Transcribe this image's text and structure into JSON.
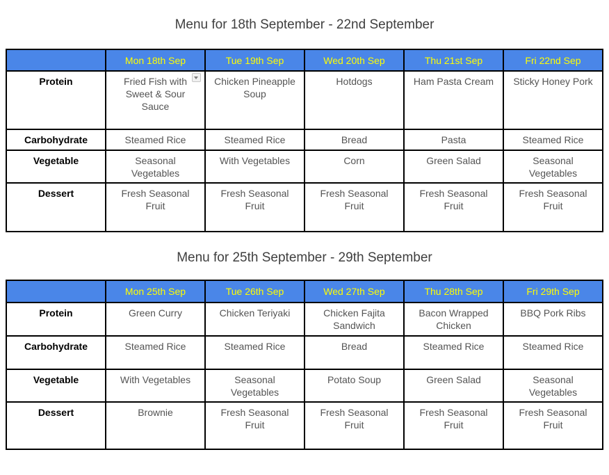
{
  "colors": {
    "header_background": "#4a86e8",
    "header_text": "#ffff00",
    "table_border": "#000000",
    "cell_text": "#545454",
    "row_label_text": "#000000",
    "title_text": "#3f3f3f",
    "page_background": "#ffffff"
  },
  "icons": {
    "dropdown": "dropdown-arrow-icon"
  },
  "tables": [
    {
      "title": "Menu for 18th September - 22nd September",
      "columns": [
        "",
        "Mon 18th Sep",
        "Tue 19th Sep",
        "Wed 20th Sep",
        "Thu 21st Sep",
        "Fri 22nd Sep"
      ],
      "rows": [
        {
          "label": "Protein",
          "cells": [
            "Fried Fish with Sweet & Sour Sauce",
            "Chicken Pineapple Soup",
            "Hotdogs",
            "Ham Pasta Cream",
            "Sticky Honey Pork"
          ]
        },
        {
          "label": "Carbohydrate",
          "cells": [
            "Steamed Rice",
            "Steamed Rice",
            "Bread",
            "Pasta",
            "Steamed Rice"
          ]
        },
        {
          "label": "Vegetable",
          "cells": [
            "Seasonal Vegetables",
            "With Vegetables",
            "Corn",
            "Green Salad",
            "Seasonal Vegetables"
          ]
        },
        {
          "label": "Dessert",
          "cells": [
            "Fresh Seasonal Fruit",
            "Fresh Seasonal Fruit",
            "Fresh Seasonal Fruit",
            "Fresh Seasonal Fruit",
            "Fresh Seasonal Fruit"
          ]
        }
      ]
    },
    {
      "title": "Menu for 25th September - 29th September",
      "columns": [
        "",
        "Mon 25th Sep",
        "Tue 26th Sep",
        "Wed 27th Sep",
        "Thu 28th Sep",
        "Fri 29th Sep"
      ],
      "rows": [
        {
          "label": "Protein",
          "cells": [
            "Green Curry",
            "Chicken Teriyaki",
            "Chicken Fajita Sandwich",
            "Bacon Wrapped Chicken",
            "BBQ Pork Ribs"
          ]
        },
        {
          "label": "Carbohydrate",
          "cells": [
            "Steamed Rice",
            "Steamed Rice",
            "Bread",
            "Steamed Rice",
            "Steamed Rice"
          ]
        },
        {
          "label": "Vegetable",
          "cells": [
            "With Vegetables",
            "Seasonal Vegetables",
            "Potato Soup",
            "Green Salad",
            "Seasonal Vegetables"
          ]
        },
        {
          "label": "Dessert",
          "cells": [
            "Brownie",
            "Fresh Seasonal Fruit",
            "Fresh Seasonal Fruit",
            "Fresh Seasonal Fruit",
            "Fresh Seasonal Fruit"
          ]
        }
      ]
    }
  ]
}
